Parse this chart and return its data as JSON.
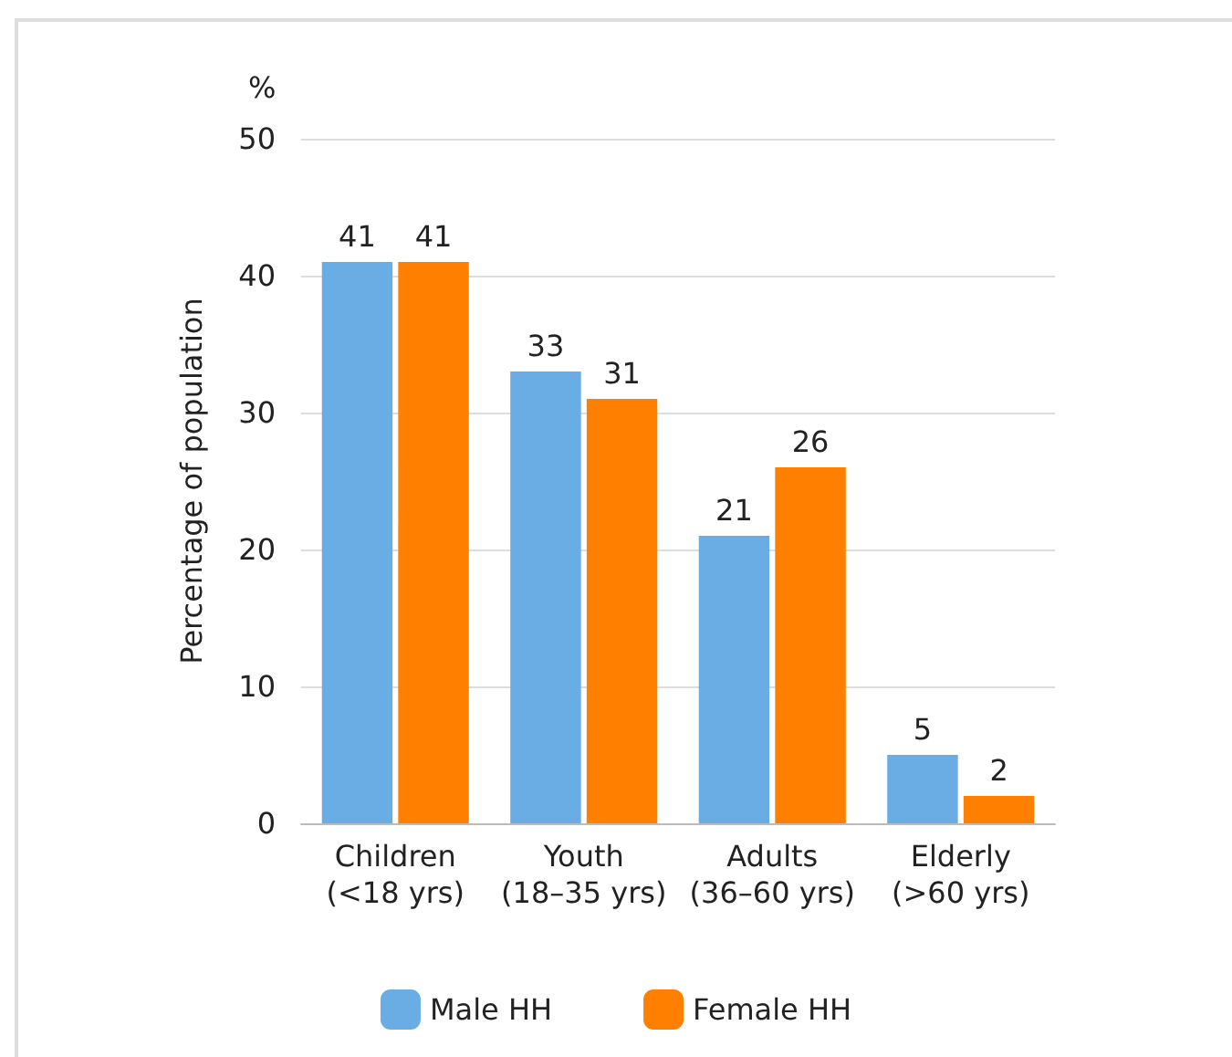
{
  "chart_data": {
    "type": "bar",
    "ylabel": "Percentage of population",
    "annotations": [
      "%"
    ],
    "categories": [
      "Children\n(<18 yrs)",
      "Youth\n(18–35 yrs)",
      "Adults\n(36–60 yrs)",
      "Elderly\n(>60 yrs)"
    ],
    "series": [
      {
        "name": "Male HH",
        "color": "#6aade4",
        "values": [
          41,
          33,
          21,
          5
        ]
      },
      {
        "name": "Female HH",
        "color": "#ff7f00",
        "values": [
          41,
          31,
          26,
          2
        ]
      }
    ],
    "ylim": [
      0,
      50
    ],
    "yticks": [
      0,
      10,
      20,
      30,
      40,
      50
    ],
    "grid": "y",
    "legend": "bottom",
    "data_labels": true
  }
}
